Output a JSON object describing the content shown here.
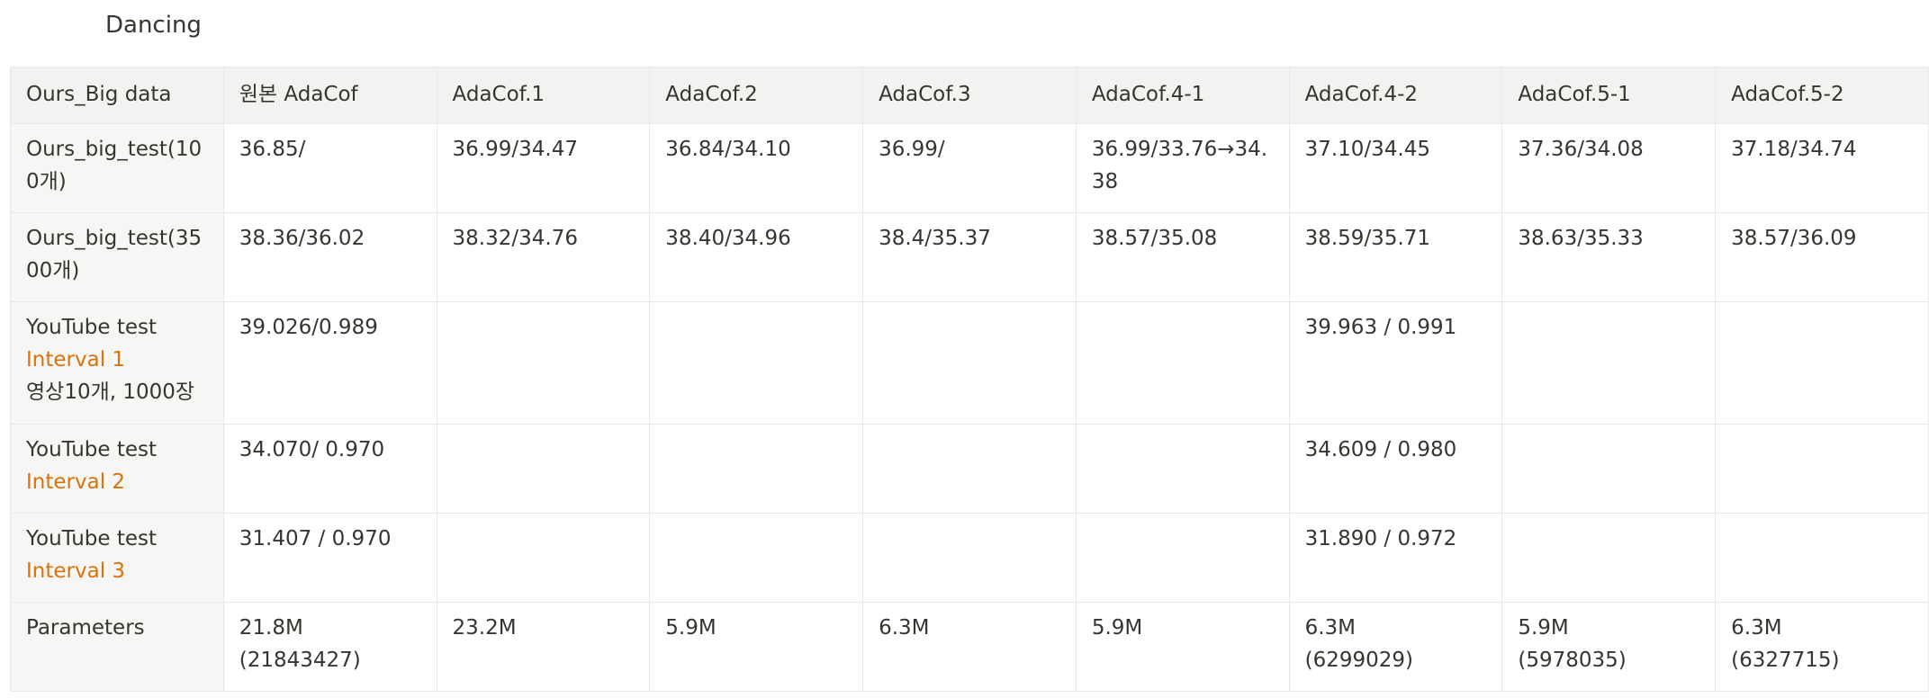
{
  "heading": "Dancing",
  "colors": {
    "header_bg": "#f0f3ef",
    "row_head_bg": "#f6f6f4",
    "border": "#e9e9e7",
    "highlight_text": "#d44c47",
    "interval_text": "#d9730d"
  },
  "table": {
    "headers": [
      "Ours_Big data",
      "원본 AdaCof",
      "AdaCof.1",
      "AdaCof.2",
      "AdaCof.3",
      "AdaCof.4-1",
      "AdaCof.4-2",
      "AdaCof.5-1",
      "AdaCof.5-2"
    ],
    "rows": [
      {
        "label": [
          "Ours_big_test(100개)"
        ],
        "cells": [
          "36.85/",
          "36.99/34.47",
          "36.84/34.10",
          "36.99/",
          "36.99/33.76→34.38",
          "37.10/34.45",
          "37.36/34.08",
          "37.18/34.74"
        ]
      },
      {
        "label": [
          "Ours_big_test(3500개)"
        ],
        "cells": [
          "38.36/36.02",
          "38.32/34.76",
          "38.40/34.96",
          "38.4/35.37",
          "38.57/35.08",
          "38.59/35.71",
          "38.63/35.33",
          "38.57/36.09"
        ]
      },
      {
        "label": [
          "YouTube test",
          "Interval 1",
          "영상10개, 1000장"
        ],
        "cells": [
          "39.026/0.989",
          "",
          "",
          "",
          "",
          "39.963 / 0.991",
          "",
          ""
        ]
      },
      {
        "label": [
          "YouTube test",
          "Interval 2"
        ],
        "cells": [
          "34.070/ 0.970",
          "",
          "",
          "",
          "",
          "34.609 / 0.980",
          "",
          ""
        ]
      },
      {
        "label": [
          "YouTube test",
          "Interval 3"
        ],
        "cells": [
          "31.407 / 0.970",
          "",
          "",
          "",
          "",
          "31.890 / 0.972",
          "",
          ""
        ]
      },
      {
        "label": [
          "Parameters"
        ],
        "cells": [
          [
            "21.8M",
            "(21843427)"
          ],
          [
            "23.2M"
          ],
          [
            "5.9M"
          ],
          [
            "6.3M"
          ],
          [
            "5.9M"
          ],
          [
            "6.3M",
            "(6299029)"
          ],
          [
            "5.9M",
            "(5978035)"
          ],
          [
            "6.3M",
            "(6327715)"
          ]
        ]
      }
    ]
  }
}
